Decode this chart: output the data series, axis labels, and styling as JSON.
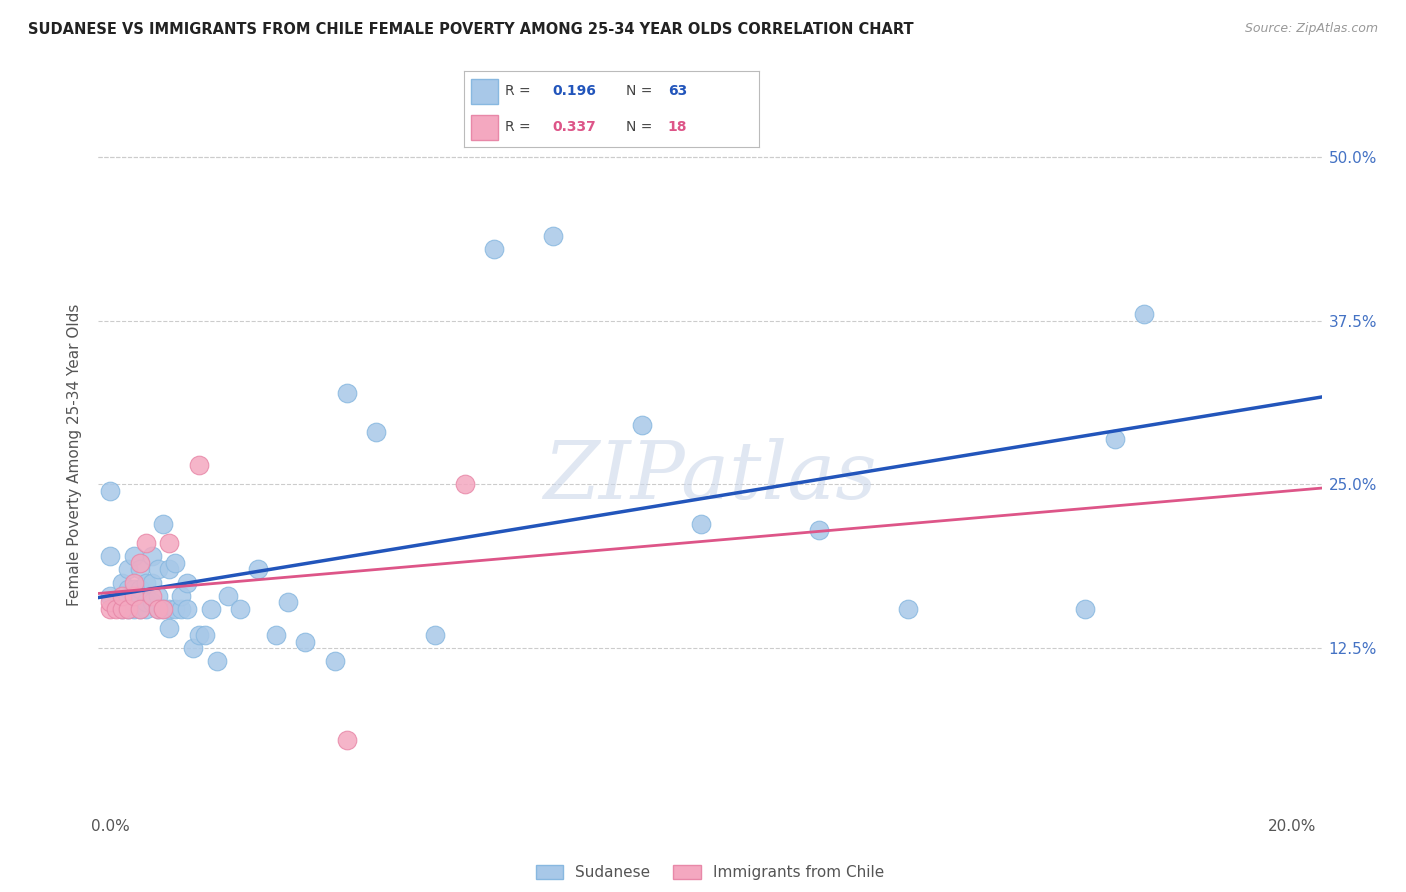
{
  "title": "SUDANESE VS IMMIGRANTS FROM CHILE FEMALE POVERTY AMONG 25-34 YEAR OLDS CORRELATION CHART",
  "source": "Source: ZipAtlas.com",
  "ylabel": "Female Poverty Among 25-34 Year Olds",
  "xlabel_ticks": [
    "0.0%",
    "",
    "",
    "",
    "20.0%"
  ],
  "xlabel_vals": [
    0.0,
    0.05,
    0.1,
    0.15,
    0.2
  ],
  "ylabel_ticks": [
    "12.5%",
    "25.0%",
    "37.5%",
    "50.0%"
  ],
  "ylabel_vals": [
    0.125,
    0.25,
    0.375,
    0.5
  ],
  "xlim": [
    -0.002,
    0.205
  ],
  "ylim": [
    0.0,
    0.545
  ],
  "color_sudanese": "#a8c8e8",
  "color_chile": "#f4a8c0",
  "color_line_sudanese": "#2255bb",
  "color_line_chile": "#dd5588",
  "sudanese_x": [
    0.0,
    0.0,
    0.0,
    0.002,
    0.002,
    0.002,
    0.003,
    0.003,
    0.003,
    0.003,
    0.004,
    0.004,
    0.004,
    0.004,
    0.005,
    0.005,
    0.005,
    0.005,
    0.005,
    0.006,
    0.006,
    0.006,
    0.007,
    0.007,
    0.007,
    0.008,
    0.008,
    0.008,
    0.009,
    0.009,
    0.01,
    0.01,
    0.01,
    0.011,
    0.011,
    0.012,
    0.012,
    0.013,
    0.013,
    0.014,
    0.015,
    0.016,
    0.017,
    0.018,
    0.02,
    0.022,
    0.025,
    0.028,
    0.03,
    0.033,
    0.038,
    0.04,
    0.045,
    0.055,
    0.065,
    0.075,
    0.09,
    0.1,
    0.12,
    0.135,
    0.165,
    0.17,
    0.175
  ],
  "sudanese_y": [
    0.165,
    0.195,
    0.245,
    0.155,
    0.165,
    0.175,
    0.155,
    0.165,
    0.17,
    0.185,
    0.155,
    0.16,
    0.17,
    0.195,
    0.155,
    0.16,
    0.165,
    0.17,
    0.185,
    0.155,
    0.16,
    0.175,
    0.16,
    0.175,
    0.195,
    0.155,
    0.165,
    0.185,
    0.155,
    0.22,
    0.14,
    0.155,
    0.185,
    0.155,
    0.19,
    0.155,
    0.165,
    0.155,
    0.175,
    0.125,
    0.135,
    0.135,
    0.155,
    0.115,
    0.165,
    0.155,
    0.185,
    0.135,
    0.16,
    0.13,
    0.115,
    0.32,
    0.29,
    0.135,
    0.43,
    0.44,
    0.295,
    0.22,
    0.215,
    0.155,
    0.155,
    0.285,
    0.38
  ],
  "chile_x": [
    0.0,
    0.0,
    0.001,
    0.002,
    0.002,
    0.003,
    0.004,
    0.004,
    0.005,
    0.005,
    0.006,
    0.007,
    0.008,
    0.009,
    0.01,
    0.015,
    0.04,
    0.06
  ],
  "chile_y": [
    0.155,
    0.16,
    0.155,
    0.155,
    0.165,
    0.155,
    0.165,
    0.175,
    0.155,
    0.19,
    0.205,
    0.165,
    0.155,
    0.155,
    0.205,
    0.265,
    0.055,
    0.25
  ],
  "grid_color": "#cccccc",
  "tick_color": "#4472c4",
  "label_color": "#555555"
}
